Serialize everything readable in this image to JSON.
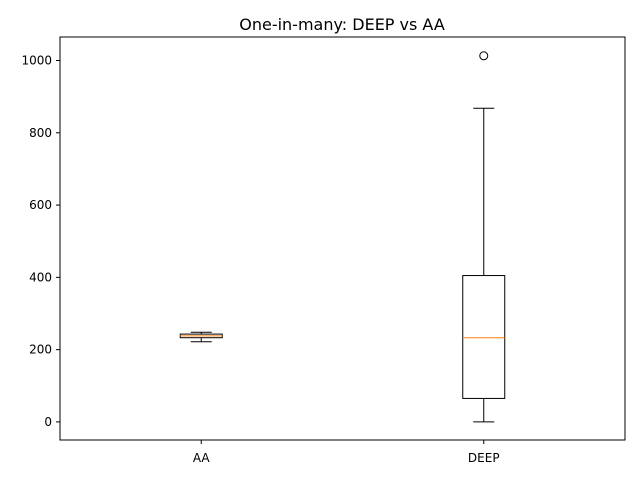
{
  "chart_data": {
    "type": "box",
    "title": "One-in-many: DEEP vs AA",
    "xlabel": "",
    "ylabel": "",
    "ylim": [
      -50,
      1065
    ],
    "yticks": [
      0,
      200,
      400,
      600,
      800,
      1000
    ],
    "grid": false,
    "categories": [
      "AA",
      "DEEP"
    ],
    "boxes": [
      {
        "label": "AA",
        "whisker_low": 222,
        "q1": 233,
        "median": 238,
        "q3": 243,
        "whisker_high": 248,
        "outliers": []
      },
      {
        "label": "DEEP",
        "whisker_low": 0,
        "q1": 65,
        "median": 233,
        "q3": 405,
        "whisker_high": 868,
        "outliers": [
          1013
        ]
      }
    ],
    "colors": {
      "box": "#000000",
      "median": "#ff7f0e",
      "axes": "#000000"
    }
  }
}
